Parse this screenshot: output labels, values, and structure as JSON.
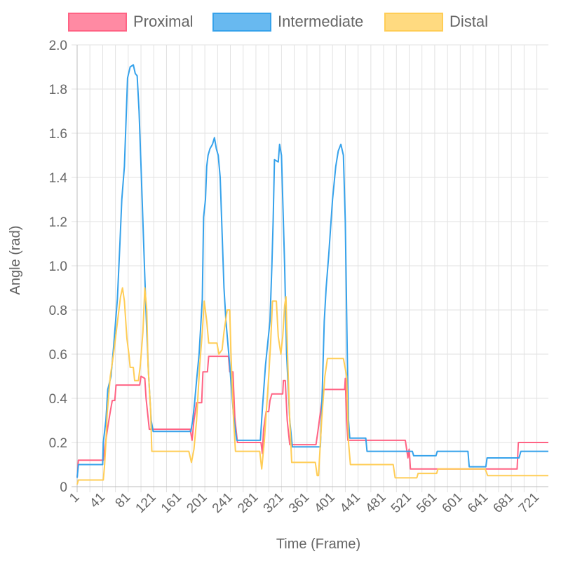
{
  "chart_data": {
    "type": "line",
    "xlabel": "Time (Frame)",
    "ylabel": "Angle (rad)",
    "xlim": [
      1,
      739
    ],
    "ylim": [
      0,
      2.0
    ],
    "x_ticks": [
      1,
      41,
      81,
      121,
      161,
      201,
      241,
      281,
      321,
      361,
      401,
      441,
      481,
      521,
      561,
      601,
      641,
      681,
      721
    ],
    "y_ticks": [
      "0",
      "0.2",
      "0.4",
      "0.6",
      "0.8",
      "1.0",
      "1.2",
      "1.4",
      "1.6",
      "1.8",
      "2.0"
    ],
    "grid": true,
    "legend": "top",
    "series": [
      {
        "name": "Proximal",
        "color": "#ff6384",
        "points": [
          [
            1,
            0.04
          ],
          [
            3,
            0.12
          ],
          [
            42,
            0.12
          ],
          [
            45,
            0.19
          ],
          [
            49,
            0.27
          ],
          [
            53,
            0.34
          ],
          [
            56,
            0.39
          ],
          [
            60,
            0.39
          ],
          [
            62,
            0.46
          ],
          [
            99,
            0.46
          ],
          [
            101,
            0.5
          ],
          [
            107,
            0.49
          ],
          [
            109,
            0.4
          ],
          [
            114,
            0.26
          ],
          [
            178,
            0.26
          ],
          [
            181,
            0.21
          ],
          [
            184,
            0.3
          ],
          [
            188,
            0.38
          ],
          [
            196,
            0.38
          ],
          [
            198,
            0.52
          ],
          [
            205,
            0.52
          ],
          [
            207,
            0.59
          ],
          [
            238,
            0.59
          ],
          [
            240,
            0.52
          ],
          [
            245,
            0.52
          ],
          [
            248,
            0.31
          ],
          [
            252,
            0.2
          ],
          [
            289,
            0.2
          ],
          [
            291,
            0.15
          ],
          [
            293,
            0.26
          ],
          [
            297,
            0.34
          ],
          [
            301,
            0.34
          ],
          [
            303,
            0.39
          ],
          [
            306,
            0.42
          ],
          [
            323,
            0.42
          ],
          [
            324,
            0.48
          ],
          [
            327,
            0.48
          ],
          [
            330,
            0.3
          ],
          [
            334,
            0.19
          ],
          [
            375,
            0.19
          ],
          [
            378,
            0.25
          ],
          [
            384,
            0.38
          ],
          [
            387,
            0.44
          ],
          [
            420,
            0.44
          ],
          [
            421,
            0.49
          ],
          [
            423,
            0.3
          ],
          [
            425,
            0.21
          ],
          [
            515,
            0.21
          ],
          [
            519,
            0.13
          ],
          [
            521,
            0.17
          ],
          [
            523,
            0.08
          ],
          [
            526,
            0.08
          ],
          [
            690,
            0.08
          ],
          [
            692,
            0.2
          ],
          [
            739,
            0.2
          ]
        ]
      },
      {
        "name": "Intermediate",
        "color": "#36a2eb",
        "points": [
          [
            1,
            0.04
          ],
          [
            3,
            0.1
          ],
          [
            41,
            0.1
          ],
          [
            42,
            0.2
          ],
          [
            46,
            0.3
          ],
          [
            49,
            0.44
          ],
          [
            54,
            0.5
          ],
          [
            58,
            0.63
          ],
          [
            64,
            0.85
          ],
          [
            68,
            1.1
          ],
          [
            71,
            1.3
          ],
          [
            75,
            1.45
          ],
          [
            80,
            1.85
          ],
          [
            84,
            1.9
          ],
          [
            89,
            1.91
          ],
          [
            92,
            1.87
          ],
          [
            95,
            1.86
          ],
          [
            98,
            1.7
          ],
          [
            101,
            1.45
          ],
          [
            104,
            1.2
          ],
          [
            107,
            0.95
          ],
          [
            110,
            0.7
          ],
          [
            113,
            0.5
          ],
          [
            117,
            0.3
          ],
          [
            120,
            0.25
          ],
          [
            179,
            0.25
          ],
          [
            182,
            0.3
          ],
          [
            185,
            0.38
          ],
          [
            188,
            0.48
          ],
          [
            192,
            0.6
          ],
          [
            197,
            0.85
          ],
          [
            199,
            1.22
          ],
          [
            202,
            1.3
          ],
          [
            204,
            1.45
          ],
          [
            206,
            1.5
          ],
          [
            209,
            1.53
          ],
          [
            213,
            1.55
          ],
          [
            216,
            1.58
          ],
          [
            219,
            1.53
          ],
          [
            222,
            1.5
          ],
          [
            225,
            1.4
          ],
          [
            228,
            1.15
          ],
          [
            231,
            0.9
          ],
          [
            234,
            0.75
          ],
          [
            240,
            0.55
          ],
          [
            246,
            0.32
          ],
          [
            251,
            0.21
          ],
          [
            288,
            0.21
          ],
          [
            291,
            0.35
          ],
          [
            296,
            0.55
          ],
          [
            303,
            0.75
          ],
          [
            306,
            1.0
          ],
          [
            308,
            1.2
          ],
          [
            310,
            1.48
          ],
          [
            316,
            1.47
          ],
          [
            318,
            1.55
          ],
          [
            321,
            1.5
          ],
          [
            323,
            1.3
          ],
          [
            326,
            1.0
          ],
          [
            329,
            0.6
          ],
          [
            334,
            0.3
          ],
          [
            338,
            0.18
          ],
          [
            382,
            0.18
          ],
          [
            385,
            0.45
          ],
          [
            388,
            0.75
          ],
          [
            391,
            0.9
          ],
          [
            395,
            1.05
          ],
          [
            401,
            1.3
          ],
          [
            406,
            1.45
          ],
          [
            410,
            1.52
          ],
          [
            414,
            1.55
          ],
          [
            418,
            1.5
          ],
          [
            421,
            1.2
          ],
          [
            424,
            0.6
          ],
          [
            426,
            0.3
          ],
          [
            428,
            0.22
          ],
          [
            453,
            0.22
          ],
          [
            455,
            0.16
          ],
          [
            526,
            0.16
          ],
          [
            528,
            0.14
          ],
          [
            563,
            0.14
          ],
          [
            565,
            0.16
          ],
          [
            613,
            0.16
          ],
          [
            615,
            0.09
          ],
          [
            641,
            0.09
          ],
          [
            643,
            0.13
          ],
          [
            693,
            0.13
          ],
          [
            696,
            0.16
          ],
          [
            739,
            0.16
          ]
        ]
      },
      {
        "name": "Distal",
        "color": "#ffcd56",
        "points": [
          [
            1,
            0.01
          ],
          [
            3,
            0.03
          ],
          [
            42,
            0.03
          ],
          [
            44,
            0.1
          ],
          [
            46,
            0.2
          ],
          [
            48,
            0.33
          ],
          [
            53,
            0.5
          ],
          [
            58,
            0.6
          ],
          [
            63,
            0.72
          ],
          [
            69,
            0.86
          ],
          [
            72,
            0.9
          ],
          [
            75,
            0.84
          ],
          [
            79,
            0.67
          ],
          [
            82,
            0.6
          ],
          [
            84,
            0.54
          ],
          [
            89,
            0.54
          ],
          [
            91,
            0.48
          ],
          [
            97,
            0.48
          ],
          [
            100,
            0.55
          ],
          [
            104,
            0.7
          ],
          [
            107,
            0.9
          ],
          [
            110,
            0.8
          ],
          [
            112,
            0.55
          ],
          [
            116,
            0.35
          ],
          [
            118,
            0.16
          ],
          [
            176,
            0.16
          ],
          [
            180,
            0.11
          ],
          [
            184,
            0.17
          ],
          [
            188,
            0.3
          ],
          [
            193,
            0.55
          ],
          [
            197,
            0.7
          ],
          [
            200,
            0.84
          ],
          [
            204,
            0.75
          ],
          [
            207,
            0.65
          ],
          [
            220,
            0.65
          ],
          [
            223,
            0.6
          ],
          [
            228,
            0.62
          ],
          [
            231,
            0.7
          ],
          [
            236,
            0.8
          ],
          [
            240,
            0.8
          ],
          [
            242,
            0.6
          ],
          [
            246,
            0.3
          ],
          [
            249,
            0.16
          ],
          [
            287,
            0.16
          ],
          [
            290,
            0.08
          ],
          [
            294,
            0.2
          ],
          [
            301,
            0.5
          ],
          [
            304,
            0.65
          ],
          [
            307,
            0.84
          ],
          [
            313,
            0.84
          ],
          [
            316,
            0.68
          ],
          [
            320,
            0.6
          ],
          [
            323,
            0.68
          ],
          [
            326,
            0.82
          ],
          [
            328,
            0.86
          ],
          [
            331,
            0.55
          ],
          [
            334,
            0.3
          ],
          [
            337,
            0.11
          ],
          [
            374,
            0.11
          ],
          [
            377,
            0.05
          ],
          [
            379,
            0.05
          ],
          [
            384,
            0.3
          ],
          [
            389,
            0.5
          ],
          [
            393,
            0.58
          ],
          [
            418,
            0.58
          ],
          [
            420,
            0.55
          ],
          [
            423,
            0.5
          ],
          [
            426,
            0.2
          ],
          [
            429,
            0.1
          ],
          [
            496,
            0.1
          ],
          [
            499,
            0.04
          ],
          [
            533,
            0.04
          ],
          [
            535,
            0.06
          ],
          [
            564,
            0.06
          ],
          [
            566,
            0.08
          ],
          [
            640,
            0.08
          ],
          [
            644,
            0.05
          ],
          [
            739,
            0.05
          ]
        ]
      }
    ]
  }
}
